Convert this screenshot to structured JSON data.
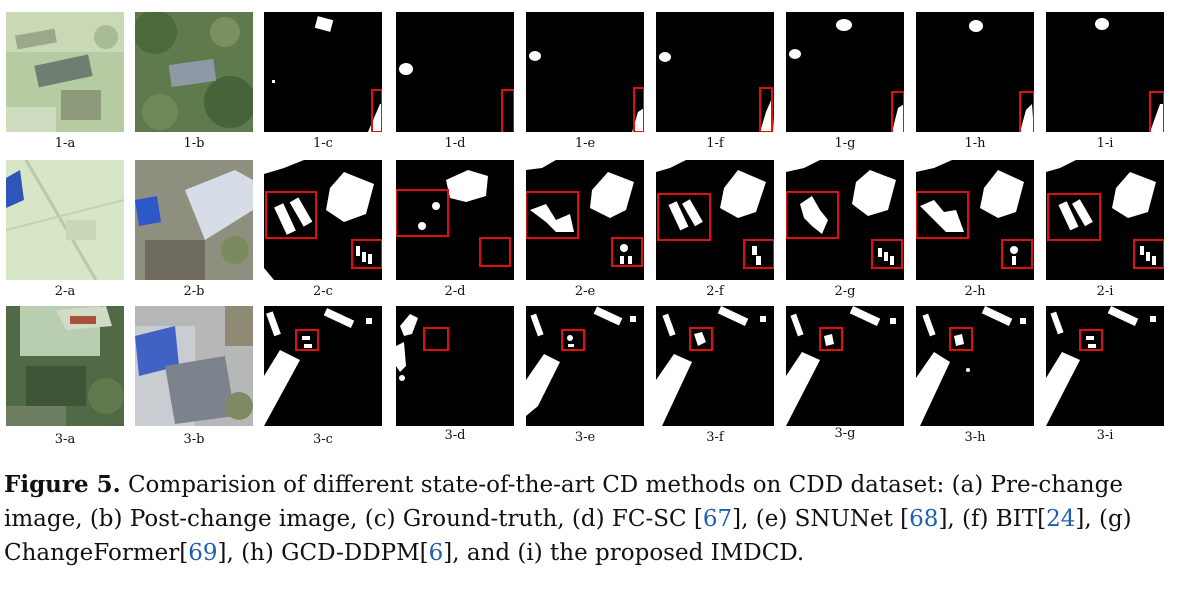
{
  "figure": {
    "rows": [
      {
        "labels": [
          "1-a",
          "1-b",
          "1-c",
          "1-d",
          "1-e",
          "1-f",
          "1-g",
          "1-h",
          "1-i"
        ]
      },
      {
        "labels": [
          "2-a",
          "2-b",
          "2-c",
          "2-d",
          "2-e",
          "2-f",
          "2-g",
          "2-h",
          "2-i"
        ]
      },
      {
        "labels": [
          "3-a",
          "3-b",
          "3-c",
          "3-d",
          "3-e",
          "3-f",
          "3-g",
          "3-h",
          "3-i"
        ]
      }
    ],
    "caption": {
      "label": "Figure 5.",
      "p1": " Comparision of different state-of-the-art CD methods on CDD dataset: (a) Pre-change image, (b) Post-change image, (c) Ground-truth, (d) FC-SC [",
      "r1": "67",
      "p2": "], (e) SNUNet [",
      "r2": "68",
      "p3": "], (f) BIT[",
      "r3": "24",
      "p4": "], (g) ChangeFormer[",
      "r4": "69",
      "p5": "], (h) GCD-DDPM[",
      "r5": "6",
      "p6": "], and (i) the proposed IMDCD."
    }
  }
}
